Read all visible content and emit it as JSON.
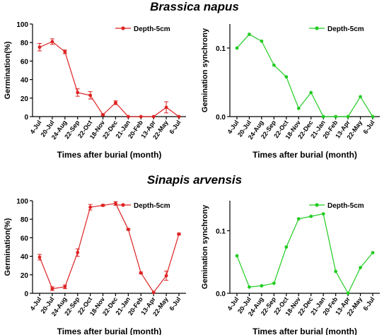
{
  "sections": [
    {
      "title": "Brassica napus"
    },
    {
      "title": "Sinapis arvensis"
    }
  ],
  "chart_data": [
    {
      "type": "line",
      "ylabel": "Germination(%)",
      "xlabel": "Times after burial (month)",
      "categories": [
        "4-Jul",
        "20-Jul",
        "24-Aug",
        "22-Sep",
        "22-Oct",
        "18-Nov",
        "22-Dec",
        "21-Jan",
        "20-Feb",
        "13-Apr",
        "22-May",
        "6-Jul"
      ],
      "ylim": [
        0,
        100
      ],
      "yticks": [
        0,
        20,
        40,
        60,
        80,
        100
      ],
      "ytick_labels": [
        "0",
        "20",
        "40",
        "60",
        "80",
        "100"
      ],
      "legend_position": "top-right",
      "series": [
        {
          "name": "Depth-5cm",
          "color": "#dd2222",
          "values": [
            75,
            81,
            70,
            26,
            23,
            2,
            15,
            0,
            0,
            0,
            10,
            0
          ],
          "errors": [
            4,
            3,
            2,
            4,
            4,
            1,
            2,
            0,
            0,
            0,
            6,
            0
          ]
        }
      ]
    },
    {
      "type": "line",
      "ylabel": "Gemination synchrony",
      "xlabel": "Times after burial (month)",
      "categories": [
        "4-Jul",
        "20-Jul",
        "24-Aug",
        "22-Sep",
        "22-Oct",
        "18-Nov",
        "22-Dec",
        "21-Jan",
        "20-Feb",
        "13-Apr",
        "22-May",
        "6-Jul"
      ],
      "ylim": [
        0,
        0.135
      ],
      "yticks": [
        0,
        0.1
      ],
      "ytick_labels": [
        "0.0",
        "0.1"
      ],
      "legend_position": "top-right",
      "series": [
        {
          "name": "Depth-5cm",
          "color": "#22cc22",
          "values": [
            0.1,
            0.12,
            0.11,
            0.075,
            0.058,
            0.012,
            0.035,
            0,
            0,
            0,
            0.029,
            0
          ]
        }
      ]
    },
    {
      "type": "line",
      "ylabel": "Germination(%)",
      "xlabel": "Times after burial (month)",
      "categories": [
        "4-Jul",
        "20-Jul",
        "24-Aug",
        "22-Sep",
        "22-Oct",
        "18-Nov",
        "22-Dec",
        "21-Jan",
        "20-Feb",
        "13-Apr",
        "22-May",
        "6-Jul"
      ],
      "ylim": [
        0,
        100
      ],
      "yticks": [
        0,
        20,
        40,
        60,
        80,
        100
      ],
      "ytick_labels": [
        "0",
        "20",
        "40",
        "60",
        "80",
        "100"
      ],
      "legend_position": "top-right",
      "series": [
        {
          "name": "Depth-5cm",
          "color": "#dd2222",
          "values": [
            39,
            5,
            7,
            44,
            93,
            95,
            97,
            69,
            22,
            1,
            19,
            64
          ],
          "errors": [
            3,
            2,
            2,
            4,
            3,
            1,
            2,
            1,
            1,
            0,
            5,
            1
          ]
        }
      ]
    },
    {
      "type": "line",
      "ylabel": "Gemination synchrony",
      "xlabel": "Times after burial (month)",
      "categories": [
        "4-Jul",
        "20-Jul",
        "24-Aug",
        "22-Sep",
        "22-Oct",
        "18-Nov",
        "22-Dec",
        "21-Jan",
        "20-Feb",
        "13-Apr",
        "22-May",
        "6-Jul"
      ],
      "ylim": [
        0,
        0.148
      ],
      "yticks": [
        0,
        0.1
      ],
      "ytick_labels": [
        "0.0",
        "0.1"
      ],
      "legend_position": "top-right",
      "series": [
        {
          "name": "Depth-5cm",
          "color": "#22cc22",
          "values": [
            0.06,
            0.01,
            0.012,
            0.016,
            0.074,
            0.119,
            0.123,
            0.127,
            0.035,
            0,
            0.041,
            0.065
          ]
        }
      ]
    }
  ]
}
